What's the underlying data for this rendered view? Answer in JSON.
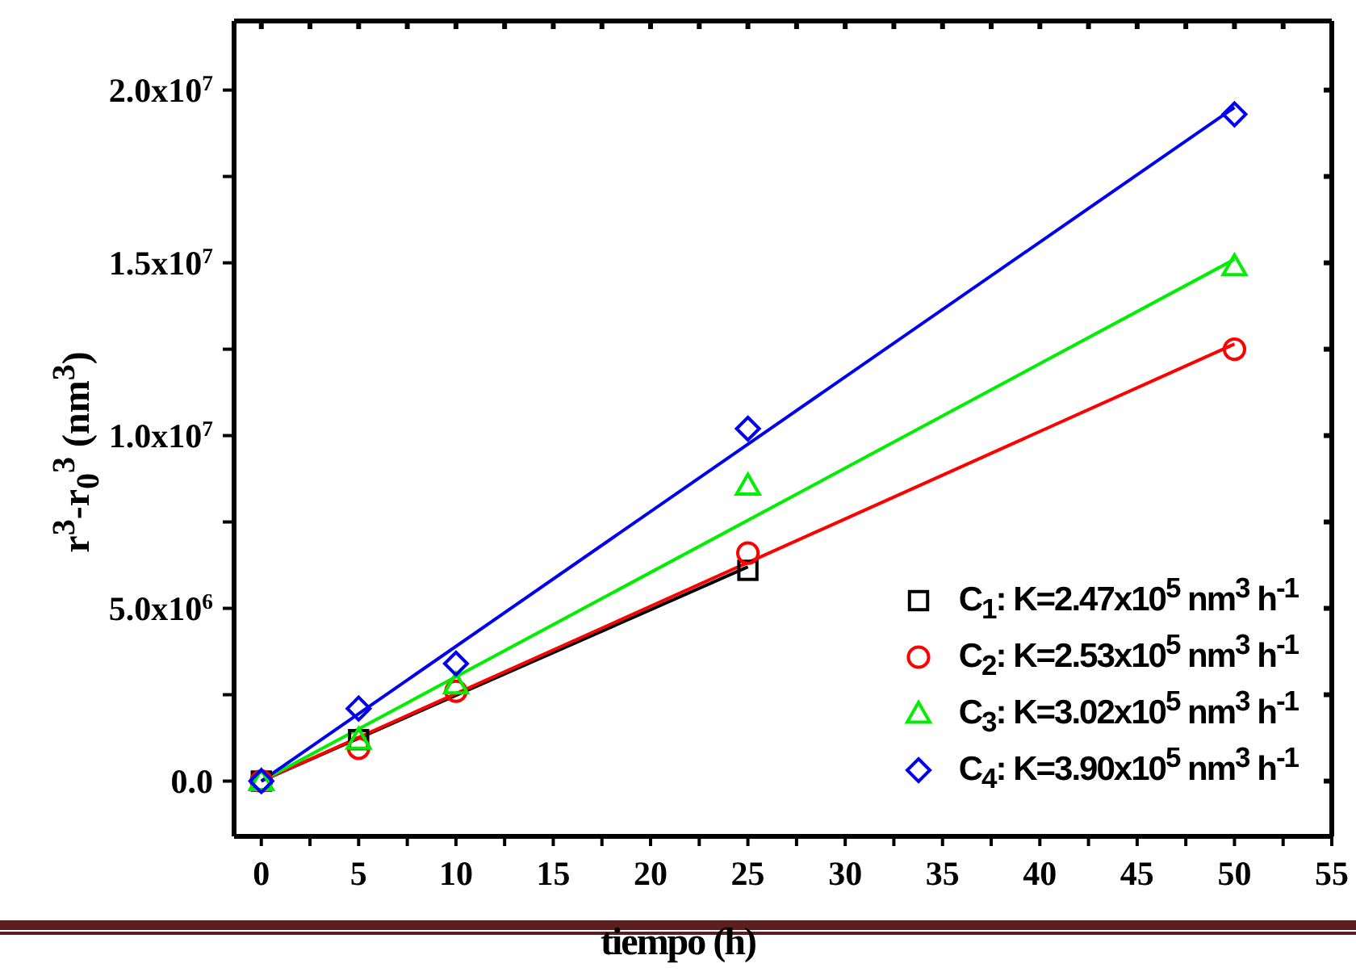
{
  "chart_data": {
    "type": "scatter",
    "xlabel": "tiempo (h)",
    "ylabel": "r$^{3}$-r$_{0}$$^{3}$ (nm$^{3}$)",
    "xlim": [
      -1.4,
      55
    ],
    "ylim": [
      -1600000,
      22000000
    ],
    "xticks": [
      0,
      {
        "value": 2.5,
        "label": null
      },
      5,
      {
        "value": 7.5,
        "label": null
      },
      10,
      {
        "value": 12.5,
        "label": null
      },
      15,
      {
        "value": 17.5,
        "label": null
      },
      20,
      {
        "value": 22.5,
        "label": null
      },
      25,
      {
        "value": 27.5,
        "label": null
      },
      30,
      {
        "value": 32.5,
        "label": null
      },
      35,
      {
        "value": 37.5,
        "label": null
      },
      40,
      {
        "value": 42.5,
        "label": null
      },
      45,
      {
        "value": 47.5,
        "label": null
      },
      50,
      {
        "value": 52.5,
        "label": null
      },
      55
    ],
    "yticks": [
      {
        "value": 0,
        "label": "0.0"
      },
      {
        "value": 2500000,
        "label": null
      },
      {
        "value": 5000000,
        "label": "5.0x10$^{6}$"
      },
      {
        "value": 7500000,
        "label": null
      },
      {
        "value": 10000000,
        "label": "1.0x10$^{7}$"
      },
      {
        "value": 12500000,
        "label": null
      },
      {
        "value": 15000000,
        "label": "1.5x10$^{7}$"
      },
      {
        "value": 17500000,
        "label": null
      },
      {
        "value": 20000000,
        "label": "2.0x10$^{7}$"
      }
    ],
    "legend": "bottom right",
    "series": [
      {
        "type": "line",
        "marker": "none",
        "line_style": "solid",
        "color": "#000000",
        "x": [
          0,
          25
        ],
        "values": [
          0,
          6200000
        ]
      },
      {
        "type": "line",
        "marker": "none",
        "line_style": "solid",
        "color": "#ff0000",
        "x": [
          0,
          50
        ],
        "values": [
          0,
          12650000
        ]
      },
      {
        "type": "line",
        "marker": "none",
        "line_style": "solid",
        "color": "#00ee00",
        "x": [
          0,
          50
        ],
        "values": [
          0,
          15100000
        ]
      },
      {
        "type": "line",
        "marker": "none",
        "line_style": "solid",
        "color": "#0000ee",
        "x": [
          0,
          50
        ],
        "values": [
          0,
          19500000
        ]
      },
      {
        "marker": "square",
        "name": "C$_{1}$: K=2.47x10$^{5}$ nm$^{3}$ h$^{-1}$",
        "color": "#000000",
        "x": [
          0,
          5,
          10,
          25
        ],
        "values": [
          0,
          1200000,
          null,
          6100000
        ]
      },
      {
        "marker": "circle",
        "name": "C$_{2}$: K=2.53x10$^{5}$ nm$^{3}$ h$^{-1}$",
        "color": "#ff0000",
        "x": [
          0,
          5,
          10,
          25,
          50
        ],
        "values": [
          0,
          950000,
          2600000,
          6600000,
          12500000
        ]
      },
      {
        "marker": "triangle",
        "name": "C$_{3}$: K=3.02x10$^{5}$ nm$^{3}$ h$^{-1}$",
        "color": "#00ee00",
        "x": [
          0,
          5,
          10,
          25,
          50
        ],
        "values": [
          0,
          1200000,
          2800000,
          8550000,
          14900000
        ]
      },
      {
        "marker": "diamond",
        "name": "C$_{4}$: K=3.90x10$^{5}$ nm$^{3}$ h$^{-1}$",
        "color": "#0000ee",
        "x": [
          0,
          5,
          10,
          25,
          50
        ],
        "values": [
          0,
          2100000,
          3400000,
          10200000,
          19300000
        ]
      }
    ]
  }
}
